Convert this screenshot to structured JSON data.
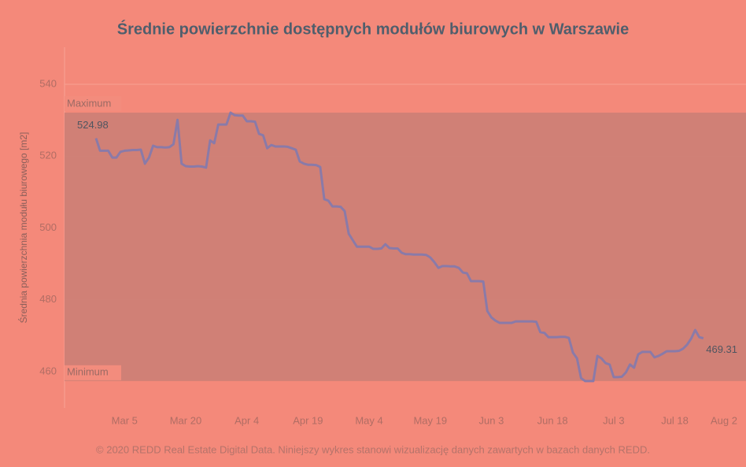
{
  "chart_data": {
    "type": "line",
    "title": "Średnie powierzchnie dostępnych modułów biurowych w Warszawie",
    "y_label": "Średnia powierzchnia modułu biurowego [m2]",
    "footer": "© 2020 REDD Real Estate Digital Data. Niniejszy wykres stanowi wizualizację danych zawartych w bazach danych REDD.",
    "band": {
      "max_label": "Maximum",
      "min_label": "Minimum",
      "color": "#cd8076"
    },
    "color": "#8a7aa8",
    "ylim": [
      450,
      550
    ],
    "yticks": [
      460,
      480,
      500,
      520,
      540
    ],
    "grid": true,
    "categories": [
      null,
      null,
      null,
      null,
      null,
      null,
      null,
      "Mar 5",
      null,
      null,
      null,
      null,
      null,
      null,
      null,
      null,
      null,
      null,
      null,
      null,
      null,
      null,
      "Mar 20",
      null,
      null,
      null,
      null,
      null,
      null,
      null,
      null,
      null,
      null,
      null,
      null,
      null,
      null,
      "Apr 4",
      null,
      null,
      null,
      null,
      null,
      null,
      null,
      null,
      null,
      null,
      null,
      null,
      null,
      null,
      "Apr 19",
      null,
      null,
      null,
      null,
      null,
      null,
      null,
      null,
      null,
      null,
      null,
      null,
      null,
      null,
      "May 4",
      null,
      null,
      null,
      null,
      null,
      null,
      null,
      null,
      null,
      null,
      null,
      null,
      null,
      null,
      "May 19",
      null,
      null,
      null,
      null,
      null,
      null,
      null,
      null,
      null,
      null,
      null,
      null,
      null,
      null,
      "Jun 3",
      null,
      null,
      null,
      null,
      null,
      null,
      null,
      null,
      null,
      null,
      null,
      null,
      null,
      null,
      "Jun 18",
      null,
      null,
      null,
      null,
      null,
      null,
      null,
      null,
      null,
      null,
      null,
      null,
      null,
      null,
      "Jul 3",
      null,
      null,
      null,
      null,
      null,
      null,
      null,
      null,
      null,
      null,
      null,
      null,
      null,
      null,
      "Jul 18",
      null,
      null,
      null,
      null,
      null,
      null,
      null,
      null,
      null,
      null,
      null,
      null,
      null,
      null,
      "Aug 2"
    ],
    "values": [
      524.98,
      521.5,
      521.5,
      521.5,
      519.6,
      519.6,
      521.2,
      521.5,
      521.6,
      521.7,
      521.7,
      521.8,
      517.9,
      519.6,
      522.9,
      522.5,
      522.5,
      522.4,
      522.5,
      523.3,
      530.1,
      517.9,
      517.2,
      517.1,
      517.1,
      517.2,
      517.1,
      516.8,
      524.4,
      523.6,
      528.8,
      528.8,
      528.8,
      532.1,
      531.4,
      531.3,
      531.3,
      529.7,
      529.7,
      529.6,
      526.2,
      525.8,
      522.2,
      523.1,
      522.7,
      522.7,
      522.7,
      522.6,
      522.2,
      521.8,
      518.5,
      517.9,
      517.6,
      517.6,
      517.5,
      517,
      508,
      507.6,
      506,
      506,
      505.9,
      504.7,
      498.4,
      496.6,
      494.8,
      494.8,
      494.8,
      494.8,
      494.2,
      494.2,
      494.3,
      495.5,
      494.4,
      494.3,
      494.3,
      493.1,
      492.7,
      492.7,
      492.6,
      492.6,
      492.6,
      492.5,
      491.8,
      490.5,
      488.9,
      489.4,
      489.4,
      489.3,
      489.3,
      488.9,
      487.6,
      487.4,
      485.2,
      485.2,
      485.2,
      485.1,
      476.9,
      475.1,
      474.2,
      473.6,
      473.6,
      473.6,
      473.6,
      474,
      474,
      474,
      474,
      474,
      473.9,
      471,
      470.8,
      469.6,
      469.6,
      469.6,
      469.7,
      469.7,
      469.4,
      465.3,
      463.7,
      458.2,
      457.4,
      457.4,
      457.4,
      464.4,
      463.7,
      462.4,
      462,
      458.5,
      458.5,
      458.6,
      459.8,
      462,
      461.1,
      464.8,
      465.5,
      465.5,
      465.5,
      464,
      464.4,
      465,
      465.7,
      465.7,
      465.7,
      465.8,
      466.4,
      467.5,
      469.2,
      471.6,
      469.6,
      469.31,
      null,
      null,
      null,
      null,
      null,
      null,
      null,
      null
    ]
  }
}
